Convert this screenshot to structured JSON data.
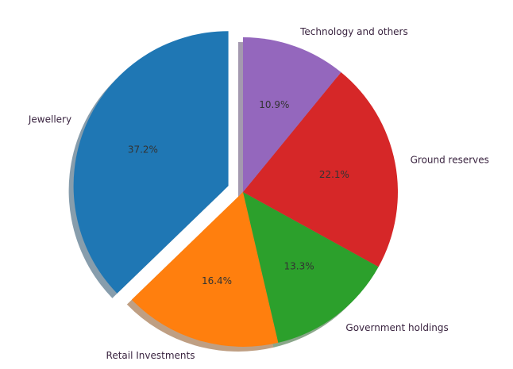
{
  "chart_data": {
    "type": "pie",
    "title": "",
    "start_angle_deg": 90,
    "direction": "counterclockwise",
    "shadow": true,
    "slices": [
      {
        "label": "Jewellery",
        "value": 37.2,
        "pct_text": "37.2%",
        "color": "#1f77b4",
        "exploded": true
      },
      {
        "label": "Retail Investments",
        "value": 16.4,
        "pct_text": "16.4%",
        "color": "#ff7f0e",
        "exploded": false
      },
      {
        "label": "Government holdings",
        "value": 13.3,
        "pct_text": "13.3%",
        "color": "#2ca02c",
        "exploded": false
      },
      {
        "label": "Ground reserves",
        "value": 22.1,
        "pct_text": "22.1%",
        "color": "#d62728",
        "exploded": false
      },
      {
        "label": "Technology and others",
        "value": 10.9,
        "pct_text": "10.9%",
        "color": "#9467bd",
        "exploded": false
      }
    ]
  }
}
